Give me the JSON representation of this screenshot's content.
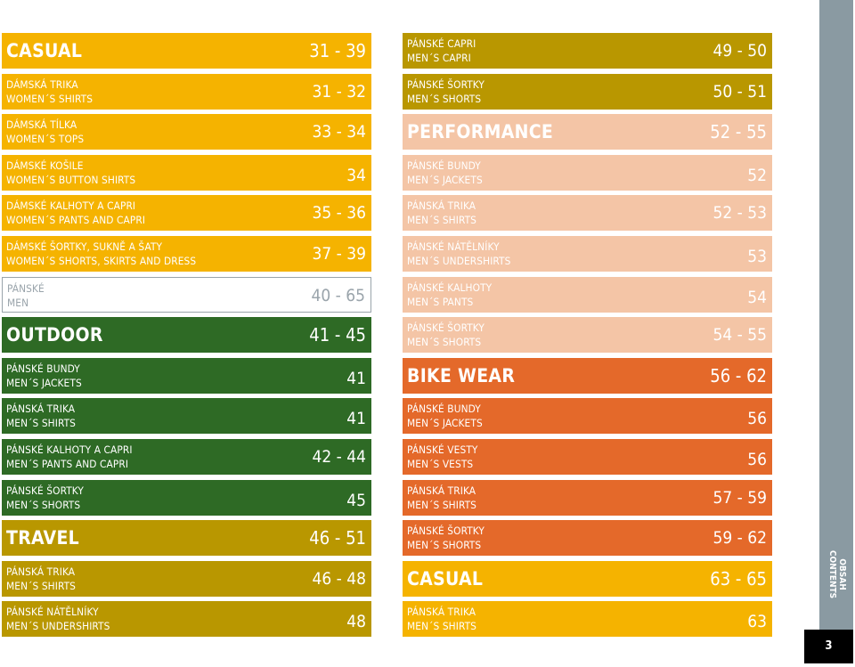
{
  "left": [
    {
      "type": "head",
      "title": "CASUAL",
      "pages": "31 - 39",
      "bg": "#f5b300"
    },
    {
      "type": "item",
      "cz": "DÁMSKÁ TRIKA",
      "en": "WOMEN´S SHIRTS",
      "pages": "31 - 32",
      "bg": "#f5b300"
    },
    {
      "type": "item",
      "cz": "DÁMSKÁ TÍLKA",
      "en": "WOMEN´S TOPS",
      "pages": "33 - 34",
      "bg": "#f5b300"
    },
    {
      "type": "item",
      "cz": "DÁMSKÉ KOŠILE",
      "en": "WOMEN´S BUTTON SHIRTS",
      "pages": "34",
      "bg": "#f5b300"
    },
    {
      "type": "item",
      "cz": "DÁMSKÉ KALHOTY A CAPRI",
      "en": "WOMEN´S PANTS AND CAPRI",
      "pages": "35 - 36",
      "bg": "#f5b300"
    },
    {
      "type": "item",
      "cz": "DÁMSKÉ ŠORTKY, SUKNĚ A ŠATY",
      "en": "WOMEN´S SHORTS, SKIRTS AND DRESS",
      "pages": "37 - 39",
      "bg": "#f5b300"
    },
    {
      "type": "outline",
      "cz": "PÁNSKÉ",
      "en": "MEN",
      "pages": "40 - 65"
    },
    {
      "type": "head",
      "title": "OUTDOOR",
      "pages": "41 - 45",
      "bg": "#2e6a25"
    },
    {
      "type": "item",
      "cz": "PÁNSKÉ BUNDY",
      "en": "MEN´S JACKETS",
      "pages": "41",
      "bg": "#2e6a25"
    },
    {
      "type": "item",
      "cz": "PÁNSKÁ TRIKA",
      "en": "MEN´S SHIRTS",
      "pages": "41",
      "bg": "#2e6a25"
    },
    {
      "type": "item",
      "cz": "PÁNSKÉ KALHOTY A CAPRI",
      "en": "MEN´S PANTS AND CAPRI",
      "pages": "42 - 44",
      "bg": "#2e6a25"
    },
    {
      "type": "item",
      "cz": "PÁNSKÉ ŠORTKY",
      "en": "MEN´S SHORTS",
      "pages": "45",
      "bg": "#2e6a25"
    },
    {
      "type": "head",
      "title": "TRAVEL",
      "pages": "46 - 51",
      "bg": "#b99700"
    },
    {
      "type": "item",
      "cz": "PÁNSKÁ TRIKA",
      "en": "MEN´S SHIRTS",
      "pages": "46 - 48",
      "bg": "#b99700"
    },
    {
      "type": "item",
      "cz": "PÁNSKÉ NÁTĚLNÍKY",
      "en": "MEN´S UNDERSHIRTS",
      "pages": "48",
      "bg": "#b99700"
    }
  ],
  "right": [
    {
      "type": "item",
      "cz": "PÁNSKÉ CAPRI",
      "en": "MEN´S CAPRI",
      "pages": "49 - 50",
      "bg": "#b99700"
    },
    {
      "type": "item",
      "cz": "PÁNSKÉ ŠORTKY",
      "en": "MEN´S SHORTS",
      "pages": "50 - 51",
      "bg": "#b99700"
    },
    {
      "type": "head",
      "title": "PERFORMANCE",
      "pages": "52 - 55",
      "bg": "#f4c5a6"
    },
    {
      "type": "item",
      "cz": "PÁNSKÉ BUNDY",
      "en": "MEN´S JACKETS",
      "pages": "52",
      "bg": "#f4c5a6"
    },
    {
      "type": "item",
      "cz": "PÁNSKÁ TRIKA",
      "en": "MEN´S SHIRTS",
      "pages": "52 - 53",
      "bg": "#f4c5a6"
    },
    {
      "type": "item",
      "cz": "PÁNSKÉ NÁTĚLNÍKY",
      "en": "MEN´S UNDERSHIRTS",
      "pages": "53",
      "bg": "#f4c5a6"
    },
    {
      "type": "item",
      "cz": "PÁNSKÉ KALHOTY",
      "en": "MEN´S PANTS",
      "pages": "54",
      "bg": "#f4c5a6"
    },
    {
      "type": "item",
      "cz": "PÁNSKÉ ŠORTKY",
      "en": "MEN´S SHORTS",
      "pages": "54 - 55",
      "bg": "#f4c5a6"
    },
    {
      "type": "head",
      "title": "BIKE WEAR",
      "pages": "56 - 62",
      "bg": "#e4692a"
    },
    {
      "type": "item",
      "cz": "PÁNSKÉ BUNDY",
      "en": "MEN´S JACKETS",
      "pages": "56",
      "bg": "#e4692a"
    },
    {
      "type": "item",
      "cz": "PÁNSKÉ VESTY",
      "en": "MEN´S VESTS",
      "pages": "56",
      "bg": "#e4692a"
    },
    {
      "type": "item",
      "cz": "PÁNSKÁ TRIKA",
      "en": "MEN´S SHIRTS",
      "pages": "57 - 59",
      "bg": "#e4692a"
    },
    {
      "type": "item",
      "cz": "PÁNSKÉ ŠORTKY",
      "en": "MEN´S SHORTS",
      "pages": "59 - 62",
      "bg": "#e4692a"
    },
    {
      "type": "head",
      "title": "CASUAL",
      "pages": "63 - 65",
      "bg": "#f5b300"
    },
    {
      "type": "item",
      "cz": "PÁNSKÁ TRIKA",
      "en": "MEN´S SHIRTS",
      "pages": "63",
      "bg": "#f5b300"
    }
  ],
  "sidebar": {
    "line1": "OBSAH",
    "line2": "CONTENTS",
    "bg": "#8a9aa2"
  },
  "page_number": "3"
}
